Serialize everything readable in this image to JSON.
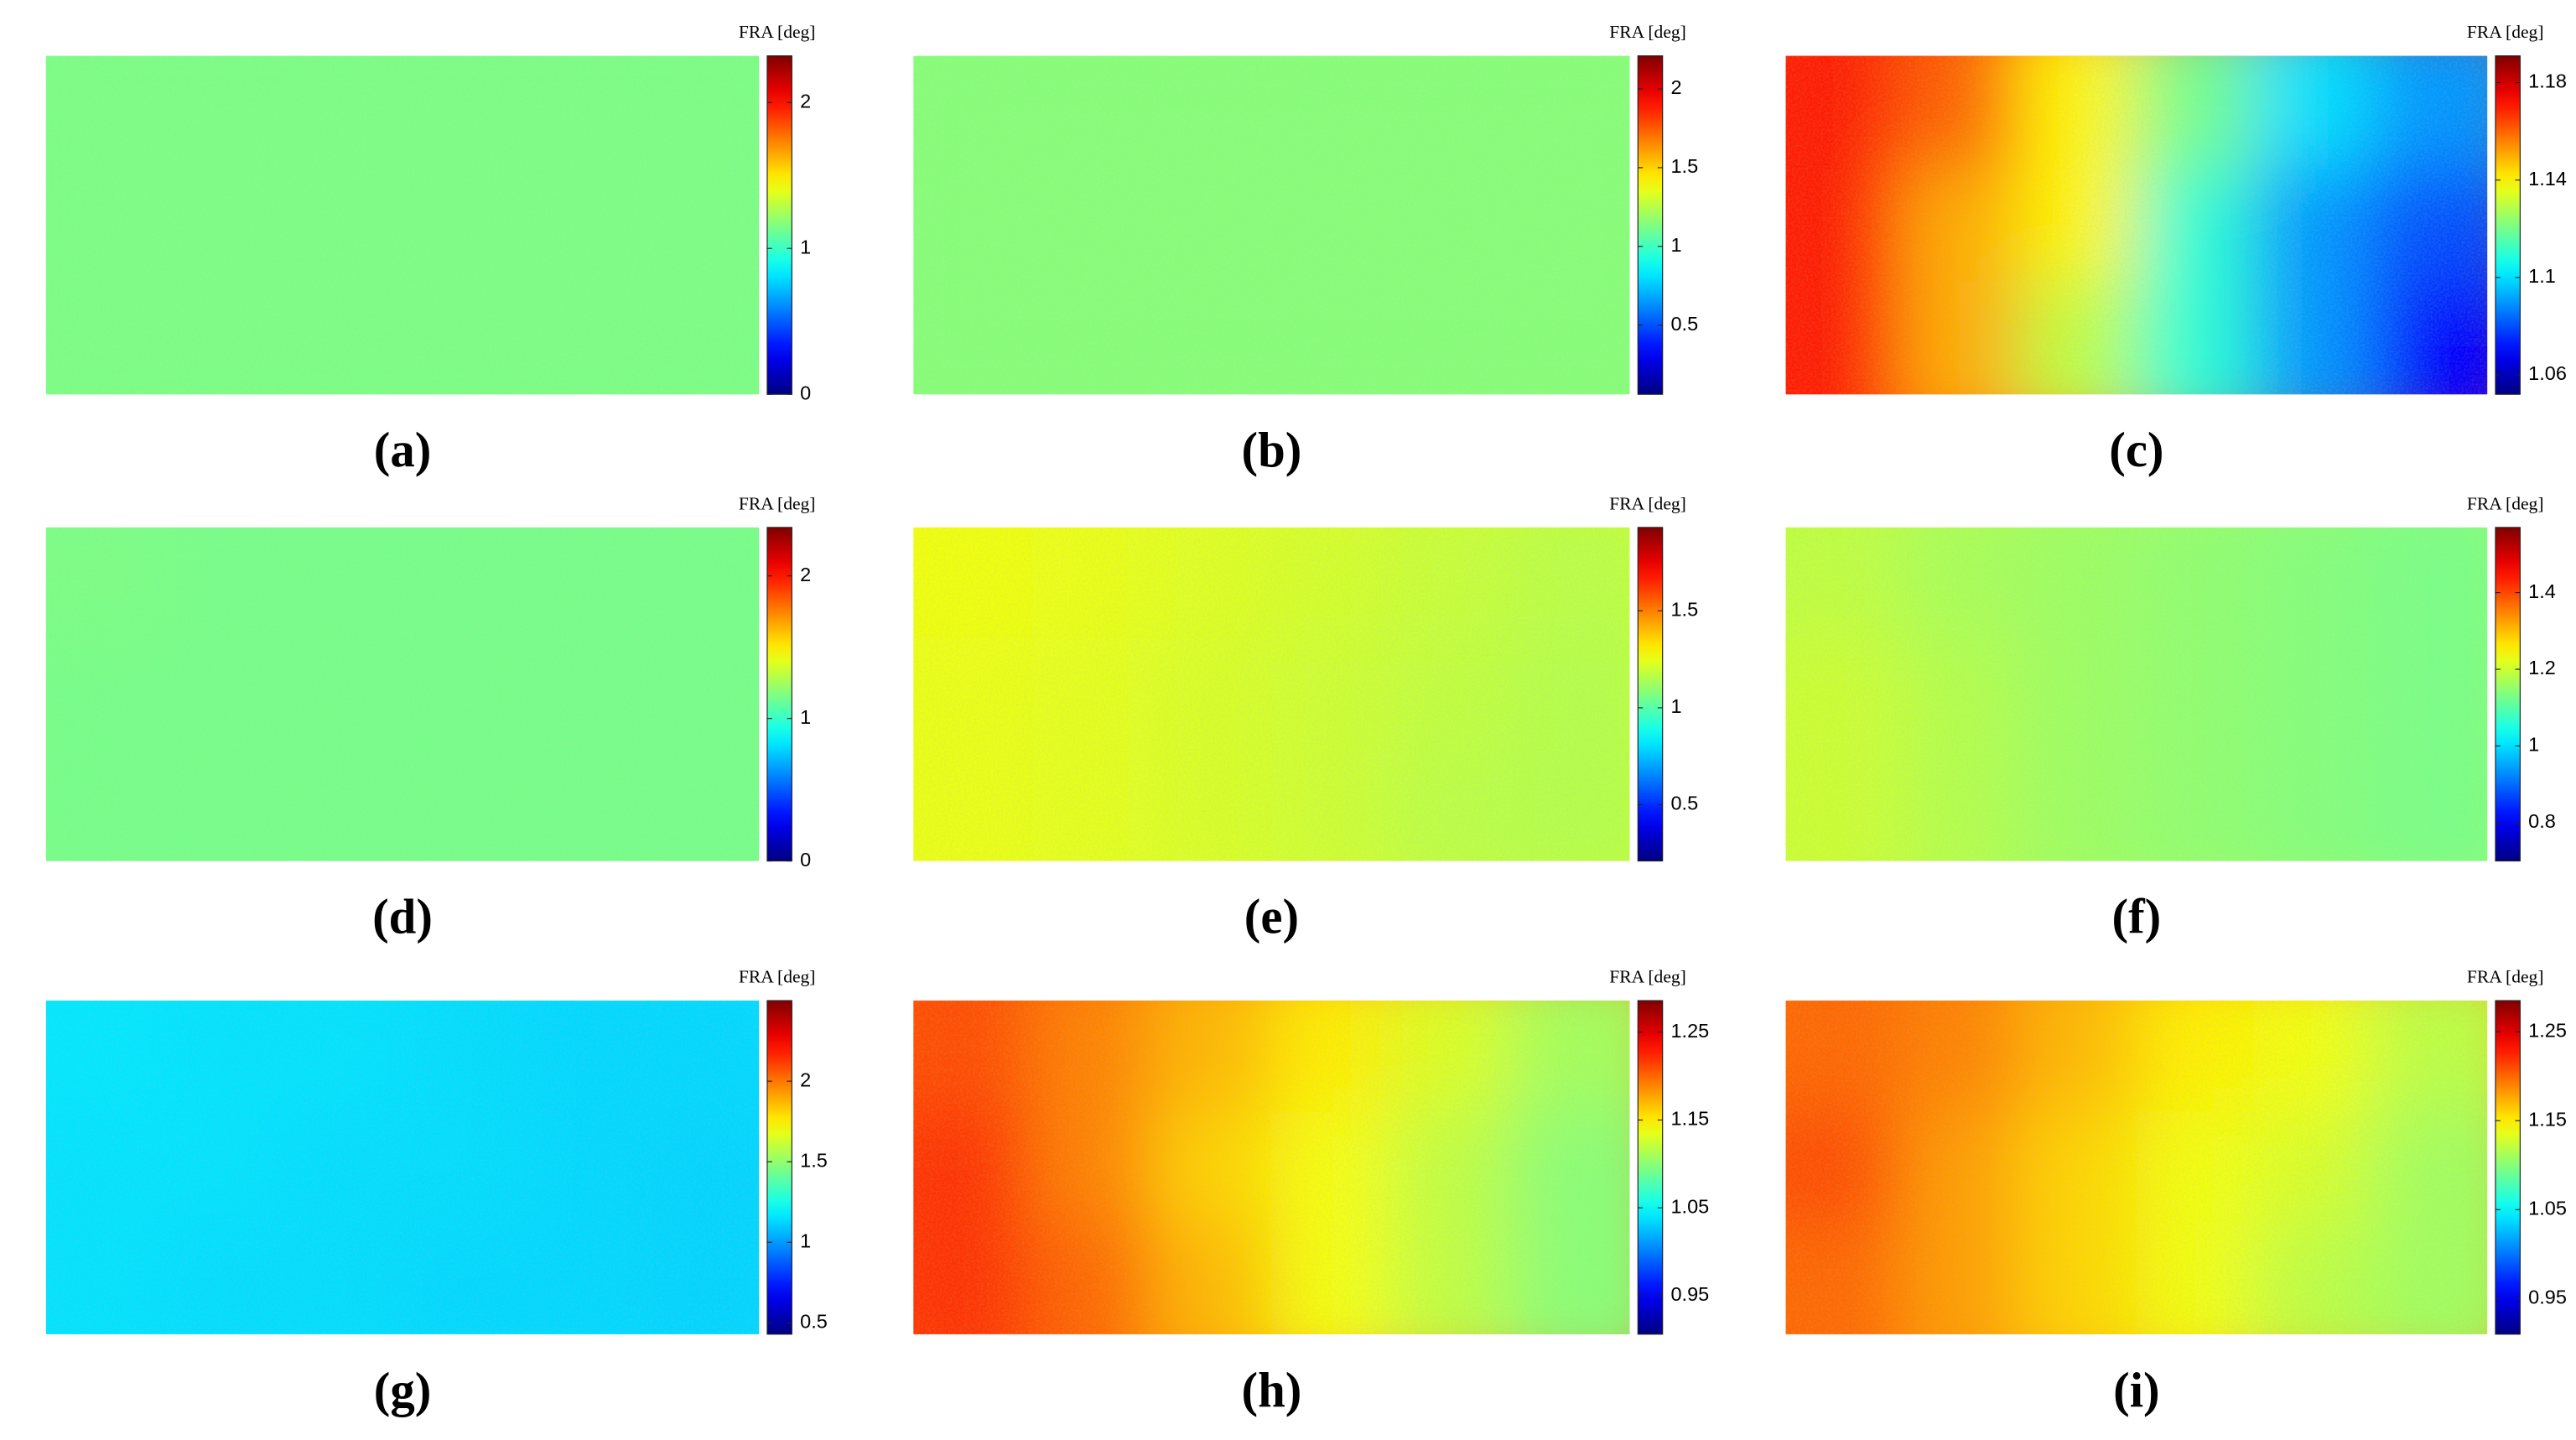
{
  "chart_data": [
    {
      "type": "heatmap",
      "caption": "(a)",
      "colorbar_label": "FRA [deg]",
      "colormap": "jet",
      "clim": [
        0,
        2.32
      ],
      "cticks": [
        0,
        1,
        2
      ],
      "values": [
        [
          1.15,
          1.15,
          1.15,
          1.15,
          1.15,
          1.15
        ],
        [
          1.15,
          1.15,
          1.15,
          1.15,
          1.15,
          1.15
        ],
        [
          1.15,
          1.15,
          1.15,
          1.15,
          1.15,
          1.15
        ]
      ]
    },
    {
      "type": "heatmap",
      "caption": "(b)",
      "colorbar_label": "FRA [deg]",
      "colormap": "jet",
      "clim": [
        0.06,
        2.21
      ],
      "cticks": [
        0.5,
        1,
        1.5,
        2
      ],
      "values": [
        [
          1.15,
          1.15,
          1.15,
          1.15,
          1.15,
          1.15
        ],
        [
          1.15,
          1.15,
          1.15,
          1.15,
          1.15,
          1.15
        ],
        [
          1.15,
          1.15,
          1.15,
          1.15,
          1.15,
          1.15
        ]
      ]
    },
    {
      "type": "heatmap",
      "caption": "(c)",
      "colorbar_label": "FRA [deg]",
      "colormap": "jet",
      "clim": [
        1.052,
        1.191
      ],
      "cticks": [
        1.06,
        1.1,
        1.14,
        1.18
      ],
      "values": [
        [
          1.17,
          1.16,
          1.14,
          1.12,
          1.1,
          1.09
        ],
        [
          1.17,
          1.15,
          1.14,
          1.11,
          1.09,
          1.08
        ],
        [
          1.17,
          1.15,
          1.13,
          1.11,
          1.09,
          1.07
        ]
      ]
    },
    {
      "type": "heatmap",
      "caption": "(d)",
      "colorbar_label": "FRA [deg]",
      "colormap": "jet",
      "clim": [
        0,
        2.34
      ],
      "cticks": [
        0,
        1,
        2
      ],
      "values": [
        [
          1.16,
          1.15,
          1.15,
          1.15,
          1.15,
          1.15
        ],
        [
          1.15,
          1.15,
          1.15,
          1.15,
          1.15,
          1.15
        ],
        [
          1.15,
          1.15,
          1.15,
          1.15,
          1.15,
          1.15
        ]
      ]
    },
    {
      "type": "heatmap",
      "caption": "(e)",
      "colorbar_label": "FRA [deg]",
      "colormap": "jet",
      "clim": [
        0.21,
        1.93
      ],
      "cticks": [
        0.5,
        1,
        1.5
      ],
      "values": [
        [
          1.26,
          1.25,
          1.23,
          1.21,
          1.19,
          1.17
        ],
        [
          1.25,
          1.24,
          1.22,
          1.2,
          1.18,
          1.16
        ],
        [
          1.25,
          1.24,
          1.22,
          1.2,
          1.17,
          1.16
        ]
      ]
    },
    {
      "type": "heatmap",
      "caption": "(f)",
      "colorbar_label": "FRA [deg]",
      "colormap": "jet",
      "clim": [
        0.7,
        1.57
      ],
      "cticks": [
        0.8,
        1,
        1.2,
        1.4
      ],
      "values": [
        [
          1.19,
          1.17,
          1.16,
          1.15,
          1.14,
          1.13
        ],
        [
          1.2,
          1.18,
          1.16,
          1.15,
          1.14,
          1.13
        ],
        [
          1.2,
          1.18,
          1.16,
          1.15,
          1.14,
          1.13
        ]
      ]
    },
    {
      "type": "heatmap",
      "caption": "(g)",
      "colorbar_label": "FRA [deg]",
      "colormap": "jet",
      "clim": [
        0.43,
        2.5
      ],
      "cticks": [
        0.5,
        1,
        1.5,
        2
      ],
      "values": [
        [
          1.16,
          1.15,
          1.15,
          1.14,
          1.13,
          1.13
        ],
        [
          1.15,
          1.15,
          1.14,
          1.14,
          1.13,
          1.12
        ],
        [
          1.15,
          1.14,
          1.14,
          1.13,
          1.13,
          1.12
        ]
      ]
    },
    {
      "type": "heatmap",
      "caption": "(h)",
      "colorbar_label": "FRA [deg]",
      "colormap": "jet",
      "clim": [
        0.906,
        1.286
      ],
      "cticks": [
        0.95,
        1.05,
        1.15,
        1.25
      ],
      "values": [
        [
          1.21,
          1.19,
          1.17,
          1.15,
          1.13,
          1.11
        ],
        [
          1.22,
          1.19,
          1.16,
          1.14,
          1.12,
          1.1
        ],
        [
          1.22,
          1.2,
          1.17,
          1.14,
          1.12,
          1.1
        ]
      ]
    },
    {
      "type": "heatmap",
      "caption": "(i)",
      "colorbar_label": "FRA [deg]",
      "colormap": "jet",
      "clim": [
        0.91,
        1.285
      ],
      "cticks": [
        0.95,
        1.05,
        1.15,
        1.25
      ],
      "values": [
        [
          1.2,
          1.19,
          1.17,
          1.15,
          1.14,
          1.12
        ],
        [
          1.21,
          1.18,
          1.16,
          1.14,
          1.13,
          1.11
        ],
        [
          1.2,
          1.18,
          1.16,
          1.14,
          1.12,
          1.11
        ]
      ]
    }
  ]
}
